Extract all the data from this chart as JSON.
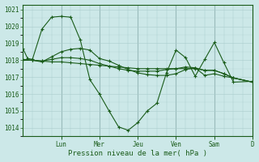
{
  "xlabel": "Pression niveau de la mer( hPa )",
  "bg_color": "#cce8e8",
  "grid_color_minor": "#aacccc",
  "grid_color_major": "#88aaaa",
  "line_color": "#1a5c1a",
  "ylim": [
    1013.5,
    1021.3
  ],
  "yticks": [
    1014,
    1015,
    1016,
    1017,
    1018,
    1019,
    1020,
    1021
  ],
  "day_labels": [
    "Lun",
    "Mer",
    "Jeu",
    "Ven",
    "Sam",
    "D"
  ],
  "day_x": [
    4,
    8,
    12,
    16,
    20,
    24
  ],
  "num_points": 25,
  "lines": [
    {
      "x": [
        0,
        0.5,
        1,
        2,
        3,
        4,
        5,
        6,
        7,
        8,
        9,
        10,
        11,
        12,
        13,
        14,
        15,
        16,
        17,
        18,
        19,
        20,
        21,
        22,
        24
      ],
      "y": [
        1018.7,
        1018.1,
        1018.05,
        1019.85,
        1020.55,
        1020.6,
        1020.55,
        1019.2,
        1016.85,
        1016.0,
        1015.0,
        1014.05,
        1013.85,
        1014.3,
        1015.0,
        1015.45,
        1017.25,
        1018.6,
        1018.15,
        1017.05,
        1018.05,
        1019.05,
        1017.85,
        1016.7,
        1016.75
      ]
    },
    {
      "x": [
        0,
        1,
        2,
        3,
        4,
        5,
        6,
        7,
        8,
        9,
        10,
        11,
        12,
        13,
        14,
        15,
        16,
        17,
        18,
        19,
        20,
        21,
        22,
        24
      ],
      "y": [
        1018.0,
        1018.0,
        1017.95,
        1018.05,
        1018.15,
        1018.15,
        1018.1,
        1018.0,
        1017.8,
        1017.65,
        1017.5,
        1017.4,
        1017.35,
        1017.35,
        1017.35,
        1017.45,
        1017.5,
        1017.6,
        1017.55,
        1017.4,
        1017.4,
        1017.2,
        1016.95,
        1016.7
      ]
    },
    {
      "x": [
        0,
        1,
        2,
        3,
        4,
        5,
        6,
        7,
        8,
        9,
        10,
        11,
        12,
        13,
        14,
        15,
        16,
        17,
        18,
        19,
        20,
        21,
        22,
        24
      ],
      "y": [
        1018.0,
        1018.0,
        1017.95,
        1017.9,
        1017.9,
        1017.85,
        1017.8,
        1017.75,
        1017.7,
        1017.65,
        1017.6,
        1017.55,
        1017.5,
        1017.5,
        1017.5,
        1017.5,
        1017.5,
        1017.5,
        1017.5,
        1017.4,
        1017.4,
        1017.2,
        1016.95,
        1016.7
      ]
    },
    {
      "x": [
        0,
        1,
        2,
        3,
        4,
        5,
        6,
        7,
        8,
        9,
        10,
        11,
        12,
        13,
        14,
        15,
        16,
        17,
        18,
        19,
        20,
        21,
        22,
        24
      ],
      "y": [
        1018.05,
        1018.0,
        1017.9,
        1018.2,
        1018.5,
        1018.65,
        1018.7,
        1018.6,
        1018.1,
        1017.95,
        1017.7,
        1017.45,
        1017.25,
        1017.15,
        1017.1,
        1017.1,
        1017.2,
        1017.45,
        1017.55,
        1017.1,
        1017.2,
        1017.05,
        1016.95,
        1016.7
      ]
    }
  ]
}
